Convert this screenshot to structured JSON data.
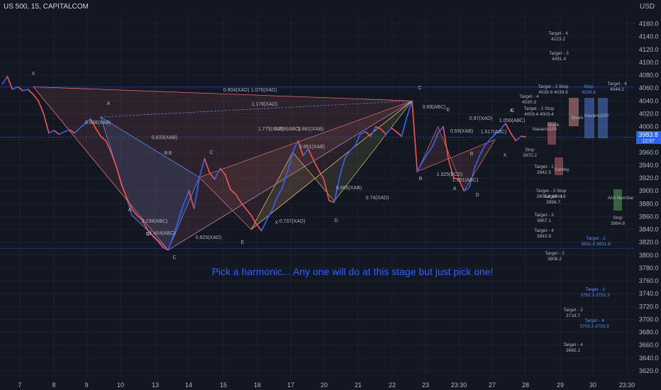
{
  "header": {
    "symbol": "US 500, 15, CAPITALCOM",
    "currency": "USD"
  },
  "price_tag": {
    "value": "3983.8",
    "sub": "12:57"
  },
  "annotation": "Pick a harmonic... Any one will do at this stage but just pick one!",
  "colors": {
    "bg": "#131722",
    "grid": "#1e222d",
    "up": "#2962ff",
    "down": "#ef5350",
    "pattern_red": "#e57373",
    "pattern_blue": "#5b8cf0",
    "pattern_yellow": "#d4c56a",
    "text": "#b2b5be"
  },
  "chart_data": {
    "type": "line",
    "title": "US 500, 15, CAPITALCOM",
    "ylabel": "USD",
    "ylim": [
      3610,
      4175
    ],
    "y_ticks": [
      4160,
      4140,
      4120,
      4100,
      4080,
      4060,
      4040,
      4020,
      4000,
      3980,
      3960,
      3940,
      3920,
      3900,
      3880,
      3860,
      3840,
      3820,
      3800,
      3780,
      3760,
      3740,
      3720,
      3700,
      3680,
      3660,
      3640,
      3620
    ],
    "x_ticks": [
      "7",
      "8",
      "9",
      "10",
      "13",
      "14",
      "15",
      "16",
      "17",
      "20",
      "21",
      "22",
      "23",
      "23:30",
      "27",
      "28",
      "29",
      "30",
      "23:30"
    ],
    "series": [
      {
        "values": [
          4066,
          4078,
          4058,
          4062,
          4056,
          4058,
          4050,
          4040,
          4020,
          3990,
          3994,
          3988,
          3992,
          3995,
          3990,
          3998,
          4005,
          4012,
          3998,
          3985,
          3978,
          3960,
          3938,
          3910,
          3890,
          3872,
          3862,
          3855,
          3840,
          3830,
          3822,
          3812,
          3808,
          3830,
          3855,
          3880,
          3900,
          3872,
          3920,
          3950,
          3928,
          3918,
          3935,
          3925,
          3902,
          3895,
          3882,
          3872,
          3862,
          3848,
          3838,
          3855,
          3870,
          3890,
          3905,
          3930,
          3960,
          3978,
          3955,
          3965,
          3948,
          3932,
          3918,
          3885,
          3882,
          3920,
          3950,
          3962,
          3970,
          3988,
          3992,
          3985,
          4000,
          3996,
          3988,
          3998,
          3992,
          3985,
          4015,
          4040,
          3930,
          3945,
          3958,
          3970,
          3990,
          4000,
          3950,
          3920,
          3918,
          3900,
          3905,
          3935,
          3955,
          3970,
          3980,
          3988,
          3995,
          4005,
          3990,
          3978,
          3985,
          3983.8
        ]
      }
    ],
    "price_labels": [
      "4160.0",
      "4140.0",
      "4120.0",
      "4100.0",
      "4080.0",
      "4060.0",
      "4040.0",
      "4020.0",
      "4000.0",
      "3980.0",
      "3960.0",
      "3940.0",
      "3920.0",
      "3900.0",
      "3880.0",
      "3860.0",
      "3840.0",
      "3820.0",
      "3800.0",
      "3780.0",
      "3760.0",
      "3740.0",
      "3720.0",
      "3700.0",
      "3680.0",
      "3660.0",
      "3640.0",
      "3620.0"
    ],
    "pattern_points": [
      "X",
      "A",
      "B",
      "C",
      "D",
      "C",
      "E",
      "X",
      "A",
      "B",
      "C",
      "D",
      "B",
      "E",
      "A",
      "D",
      "X",
      "A",
      "B",
      "C",
      "D"
    ],
    "ratio_labels": [
      "0.904(XAD)",
      "1.075(XAD)",
      "1.176(XAD)",
      "0.838(XAB)",
      "0.833(XAB)",
      "2.238(ABC)",
      "1.404(ABC)",
      "0.825(XAD)",
      "1.775(XAB)",
      "1.239(ABC)",
      "0.881(XAB)",
      "0.851(XAB)",
      "0.737(XAD)",
      "0.605(XAB)",
      "0.74(XAD)",
      "0.69(ABC)",
      "0.59(XAB)",
      "0.97(XAD)",
      "1.056(ABC)",
      "1.617(ABC)",
      "1.325(BCD)",
      "1.191(ABC)"
    ],
    "targets": [
      {
        "label": "Target - 4",
        "value": "4123.2",
        "price": 4123.2
      },
      {
        "label": "Target - 3",
        "value": "4091.4",
        "price": 4091.4
      },
      {
        "label": "Target - 2 Stop",
        "value": "4039.8 4039.8",
        "price": 4039.8
      },
      {
        "label": "Stop",
        "value": "4039.8",
        "price": 4039.8
      },
      {
        "label": "Target - 4",
        "value": "4044.2",
        "price": 4044.2
      },
      {
        "label": "Target - 4",
        "value": "4030.3",
        "price": 4030.3
      },
      {
        "label": "Target - 2 Stop",
        "value": "4003.4 4003.4",
        "price": 4003.4
      },
      {
        "label": "Stop",
        "value": "3970.2",
        "price": 3970.2
      },
      {
        "label": "Target - 1",
        "value": "3942.5",
        "price": 3942.5
      },
      {
        "label": "Target - 2 Stop",
        "value": "3904.8 3904.8",
        "price": 3904.8
      },
      {
        "label": "Target - 1",
        "value": "3896.7",
        "price": 3896.7
      },
      {
        "label": "Target - 3",
        "value": "3867.1",
        "price": 3867.1
      },
      {
        "label": "Stop",
        "value": "3864.8",
        "price": 3864.8
      },
      {
        "label": "Target - 4",
        "value": "3843.9",
        "price": 3843.9
      },
      {
        "label": "Target - 2",
        "value": "3831.8 3831.8",
        "price": 3831.8
      },
      {
        "label": "Target - 2",
        "value": "3808.2",
        "price": 3808.2
      },
      {
        "label": "Target - 3",
        "value": "3752.3 3752.3",
        "price": 3752.3
      },
      {
        "label": "Target - 3",
        "value": "3719.7",
        "price": 3719.7
      },
      {
        "label": "Target - 4",
        "value": "3703.3 3703.3",
        "price": 3703.3
      },
      {
        "label": "Target - 4",
        "value": "3665.1",
        "price": 3665.1
      }
    ],
    "pattern_names": [
      "Shark",
      "Navarro200",
      "Shark",
      "Navarro200",
      "Gartley",
      "Anti NenStar"
    ],
    "grid": true
  }
}
